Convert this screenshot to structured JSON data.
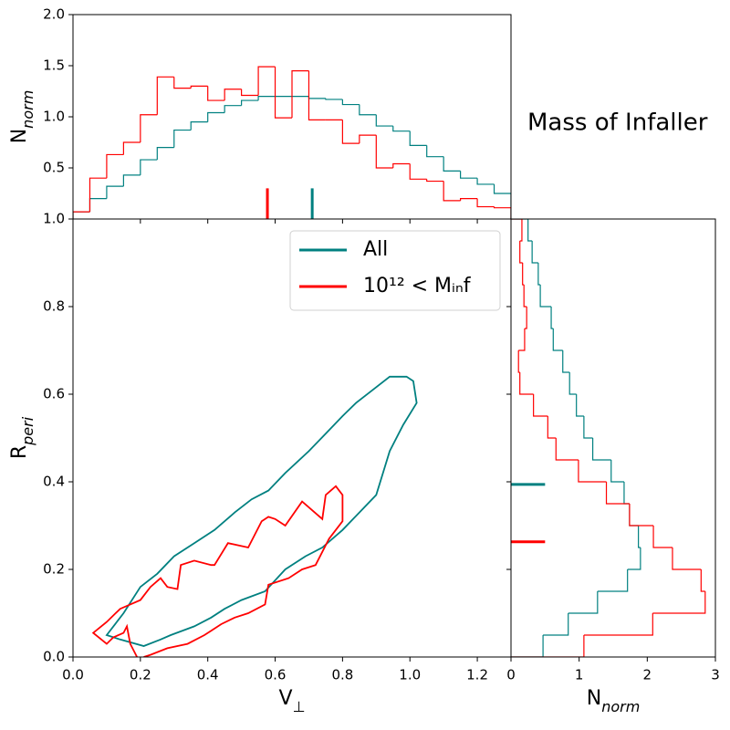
{
  "title": "Mass of Infaller",
  "chart_data": [
    {
      "type": "histogram",
      "orientation": "vertical",
      "bins": [
        0,
        0.05,
        0.1,
        0.15,
        0.2,
        0.25,
        0.3,
        0.35,
        0.4,
        0.45,
        0.5,
        0.55,
        0.6,
        0.65,
        0.7,
        0.75,
        0.8,
        0.85,
        0.9,
        0.95,
        1.0,
        1.05,
        1.1,
        1.15,
        1.2,
        1.25,
        1.3
      ],
      "series": [
        {
          "color": "#008080",
          "values": [
            0.07,
            0.2,
            0.32,
            0.43,
            0.58,
            0.7,
            0.87,
            0.95,
            1.04,
            1.11,
            1.16,
            1.2,
            1.2,
            1.2,
            1.18,
            1.17,
            1.12,
            1.02,
            0.91,
            0.86,
            0.72,
            0.61,
            0.47,
            0.4,
            0.34,
            0.25
          ],
          "median": 0.71
        },
        {
          "color": "#ff0000",
          "values": [
            0.07,
            0.4,
            0.63,
            0.75,
            1.02,
            1.39,
            1.28,
            1.3,
            1.16,
            1.27,
            1.21,
            1.49,
            0.99,
            1.45,
            0.97,
            0.97,
            0.74,
            0.82,
            0.5,
            0.54,
            0.39,
            0.37,
            0.18,
            0.2,
            0.12,
            0.11
          ],
          "median": 0.577
        }
      ],
      "marker_length": 0.3,
      "xlim": [
        0,
        1.3
      ],
      "ylim": [
        0,
        2
      ],
      "yticks": [
        0.5,
        {
          "value": 1.0,
          "label": "1.0"
        },
        1.5,
        {
          "value": 2.0,
          "label": "2.0"
        }
      ],
      "ylabel": {
        "text": "N",
        "sub": "norm"
      }
    },
    {
      "type": "line",
      "xlim": [
        0,
        1.3
      ],
      "ylim": [
        0,
        1
      ],
      "xticks": [
        {
          "value": 0,
          "label": "0.0"
        },
        0.2,
        0.4,
        0.6,
        0.8,
        {
          "value": 1.0,
          "label": "1.0"
        },
        1.2
      ],
      "yticks": [
        {
          "value": 0,
          "label": "0.0"
        },
        0.2,
        0.4,
        0.6,
        0.8,
        {
          "value": 1.0,
          "label": "1.0"
        }
      ],
      "xlabel": {
        "text": "V",
        "sub": "⊥"
      },
      "ylabel": {
        "text": "R",
        "sub": "peri"
      },
      "legend": "upper right",
      "series": [
        {
          "name": "All",
          "color": "#008080",
          "closed": true,
          "x": [
            0.1,
            0.15,
            0.2,
            0.25,
            0.3,
            0.36,
            0.42,
            0.48,
            0.53,
            0.58,
            0.63,
            0.7,
            0.75,
            0.8,
            0.84,
            0.89,
            0.94,
            0.99,
            1.01,
            1.02,
            0.98,
            0.94,
            0.9,
            0.85,
            0.8,
            0.74,
            0.69,
            0.63,
            0.57,
            0.5,
            0.45,
            0.41,
            0.36,
            0.29,
            0.26,
            0.21,
            0.14
          ],
          "values": [
            0.05,
            0.1,
            0.16,
            0.19,
            0.23,
            0.26,
            0.29,
            0.33,
            0.36,
            0.38,
            0.42,
            0.47,
            0.51,
            0.55,
            0.58,
            0.61,
            0.64,
            0.64,
            0.63,
            0.58,
            0.53,
            0.47,
            0.37,
            0.33,
            0.29,
            0.25,
            0.23,
            0.2,
            0.15,
            0.13,
            0.11,
            0.09,
            0.07,
            0.05,
            0.04,
            0.025,
            0.04
          ]
        },
        {
          "name": "10¹² < Mᵢₙf",
          "color": "#ff0000",
          "closed": false,
          "x": [
            0.19,
            0.17,
            0.16,
            0.15,
            0.12,
            0.1,
            0.06,
            0.1,
            0.14,
            0.2,
            0.23,
            0.26,
            0.28,
            0.31,
            0.32,
            0.36,
            0.41,
            0.42,
            0.46,
            0.52,
            0.56,
            0.58,
            0.6,
            0.63,
            0.68,
            0.74,
            0.75,
            0.78,
            0.8,
            0.8,
            0.76,
            0.72,
            0.68,
            0.64,
            0.58,
            0.57,
            0.52,
            0.48,
            0.44,
            0.41,
            0.39,
            0.34,
            0.28,
            0.23,
            0.21
          ],
          "values": [
            0,
            0.03,
            0.07,
            0.055,
            0.045,
            0.03,
            0.055,
            0.08,
            0.11,
            0.13,
            0.16,
            0.18,
            0.16,
            0.155,
            0.21,
            0.22,
            0.21,
            0.21,
            0.26,
            0.25,
            0.31,
            0.32,
            0.315,
            0.3,
            0.355,
            0.315,
            0.37,
            0.39,
            0.37,
            0.31,
            0.27,
            0.21,
            0.2,
            0.18,
            0.165,
            0.12,
            0.1,
            0.09,
            0.075,
            0.06,
            0.05,
            0.03,
            0.02,
            0.005,
            0
          ]
        }
      ]
    },
    {
      "type": "histogram",
      "orientation": "horizontal",
      "bins": [
        0,
        0.05,
        0.1,
        0.15,
        0.2,
        0.25,
        0.3,
        0.35,
        0.4,
        0.45,
        0.5,
        0.55,
        0.6,
        0.65,
        0.7,
        0.75,
        0.8,
        0.85,
        0.9,
        0.95,
        1.0
      ],
      "series": [
        {
          "color": "#008080",
          "values": [
            0.47,
            0.84,
            1.27,
            1.71,
            1.9,
            1.87,
            1.74,
            1.66,
            1.47,
            1.2,
            1.07,
            0.96,
            0.86,
            0.76,
            0.62,
            0.59,
            0.43,
            0.4,
            0.31,
            0.25
          ],
          "median": 0.394
        },
        {
          "color": "#ff0000",
          "values": [
            1.07,
            2.08,
            2.85,
            2.79,
            2.37,
            2.09,
            1.74,
            1.4,
            0.99,
            0.66,
            0.54,
            0.33,
            0.13,
            0.11,
            0.2,
            0.23,
            0.19,
            0.17,
            0.13,
            0.16
          ],
          "median": 0.263
        }
      ],
      "marker_length": 0.5,
      "xlim": [
        0,
        3
      ],
      "ylim": [
        0,
        1
      ],
      "xticks": [
        0,
        1,
        2,
        3
      ],
      "xlabel": {
        "text": "N",
        "sub": "norm"
      }
    }
  ]
}
